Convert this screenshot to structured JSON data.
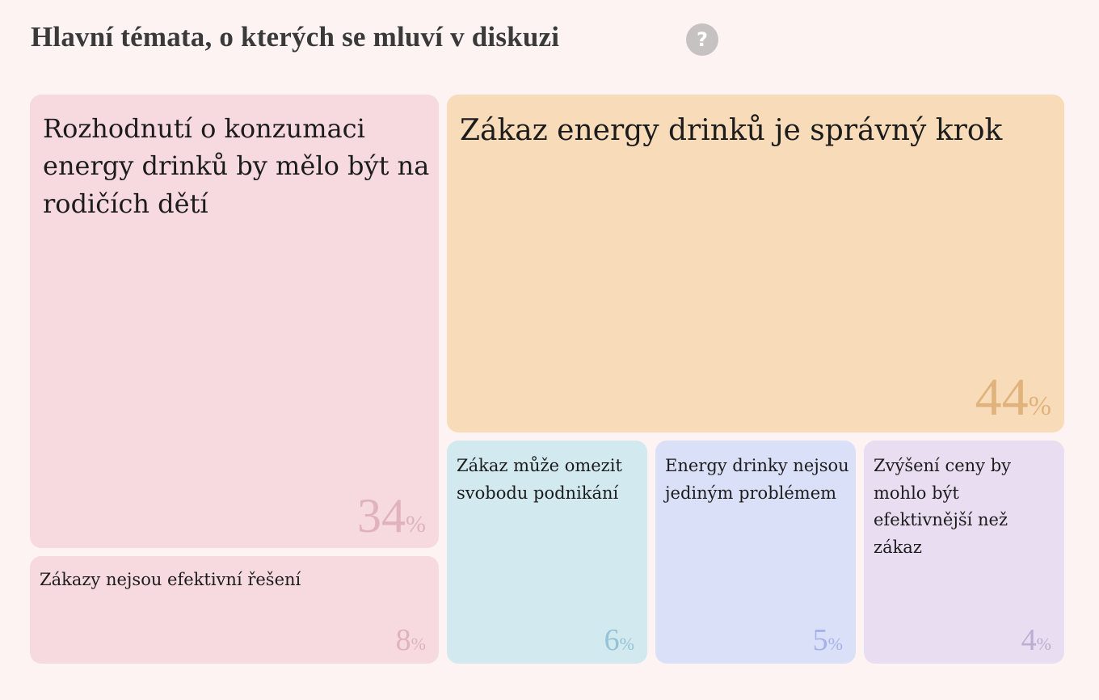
{
  "header": {
    "title": "Hlavní témata, o kterých se mluví v diskuzi",
    "help_symbol": "?"
  },
  "chart_data": {
    "type": "treemap",
    "title": "Hlavní témata, o kterých se mluví v diskuzi",
    "percent_sign": "%",
    "topics": [
      {
        "label": "Zákaz energy drinků je správný krok",
        "value": 44,
        "fill": "#f8dcba",
        "value_color": "#e0b27c"
      },
      {
        "label": "Rozhodnutí o konzumaci energy drinků by mělo být na rodičích dětí",
        "value": 34,
        "fill": "#f6dadf",
        "value_color": "#dfb2bd"
      },
      {
        "label": "Zákazy nejsou efektivní řešení",
        "value": 8,
        "fill": "#f6dadf",
        "value_color": "#dfb2bd"
      },
      {
        "label": "Zákaz může omezit svobodu podnikání",
        "value": 6,
        "fill": "#d1e9ef",
        "value_color": "#94c3d5"
      },
      {
        "label": "Energy drinky nejsou jediným problémem",
        "value": 5,
        "fill": "#dbe0f9",
        "value_color": "#a6b1ea"
      },
      {
        "label": "Zvýšení ceny by mohlo být efektivnější než zákaz",
        "value": 4,
        "fill": "#e9ddf1",
        "value_color": "#bcaed2"
      }
    ]
  }
}
